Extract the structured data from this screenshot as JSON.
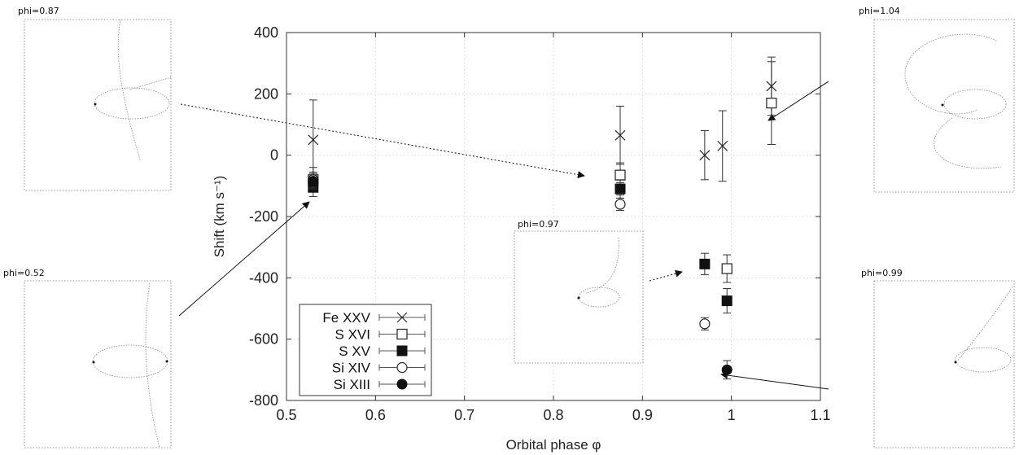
{
  "chart_data": {
    "type": "scatter",
    "xlabel": "Orbital phase φ",
    "ylabel": "Shift (km s⁻¹)",
    "xlim": [
      0.5,
      1.1
    ],
    "ylim": [
      -800,
      400
    ],
    "xticks": [
      "0.5",
      "0.6",
      "0.7",
      "0.8",
      "0.9",
      "1",
      "1.1"
    ],
    "yticks": [
      "400",
      "200",
      "0",
      "-200",
      "-400",
      "-600",
      "-800"
    ],
    "grid": true,
    "legend_position": "bottom-left",
    "series": [
      {
        "name": "Fe XXV",
        "marker": "cross",
        "points": [
          {
            "x": 0.53,
            "y": 50,
            "err": 130
          },
          {
            "x": 0.875,
            "y": 65,
            "err": 95
          },
          {
            "x": 0.97,
            "y": 0,
            "err": 80
          },
          {
            "x": 0.99,
            "y": 30,
            "err": 115
          },
          {
            "x": 1.045,
            "y": 225,
            "err": 95
          }
        ]
      },
      {
        "name": "S XVI",
        "marker": "open-square",
        "points": [
          {
            "x": 0.53,
            "y": -80,
            "err": 40
          },
          {
            "x": 0.875,
            "y": -65,
            "err": 40
          },
          {
            "x": 0.995,
            "y": -370,
            "err": 45
          },
          {
            "x": 1.045,
            "y": 170,
            "err": 135
          }
        ]
      },
      {
        "name": "S XV",
        "marker": "filled-square",
        "points": [
          {
            "x": 0.53,
            "y": -105,
            "err": 30
          },
          {
            "x": 0.875,
            "y": -110,
            "err": 30
          },
          {
            "x": 0.97,
            "y": -355,
            "err": 35
          },
          {
            "x": 0.995,
            "y": -475,
            "err": 40
          }
        ]
      },
      {
        "name": "Si XIV",
        "marker": "open-circle",
        "points": [
          {
            "x": 0.53,
            "y": -80,
            "err": 25
          },
          {
            "x": 0.875,
            "y": -160,
            "err": 20
          },
          {
            "x": 0.97,
            "y": -550,
            "err": 20
          }
        ]
      },
      {
        "name": "Si XIII",
        "marker": "filled-circle",
        "points": [
          {
            "x": 0.53,
            "y": -85,
            "err": 25
          },
          {
            "x": 0.875,
            "y": -110,
            "err": 20
          },
          {
            "x": 0.995,
            "y": -700,
            "err": 30
          }
        ]
      }
    ],
    "insets": [
      {
        "label": "phi=0.87",
        "points_to": {
          "x": 0.875,
          "y": -70
        }
      },
      {
        "label": "phi=0.52",
        "points_to": {
          "x": 0.53,
          "y": -150
        }
      },
      {
        "label": "phi=0.97",
        "points_to": {
          "x": 0.962,
          "y": -355
        }
      },
      {
        "label": "phi=1.04",
        "points_to": {
          "x": 1.055,
          "y": 130
        }
      },
      {
        "label": "phi=0.99",
        "points_to": {
          "x": 1.0,
          "y": -705
        }
      }
    ]
  }
}
